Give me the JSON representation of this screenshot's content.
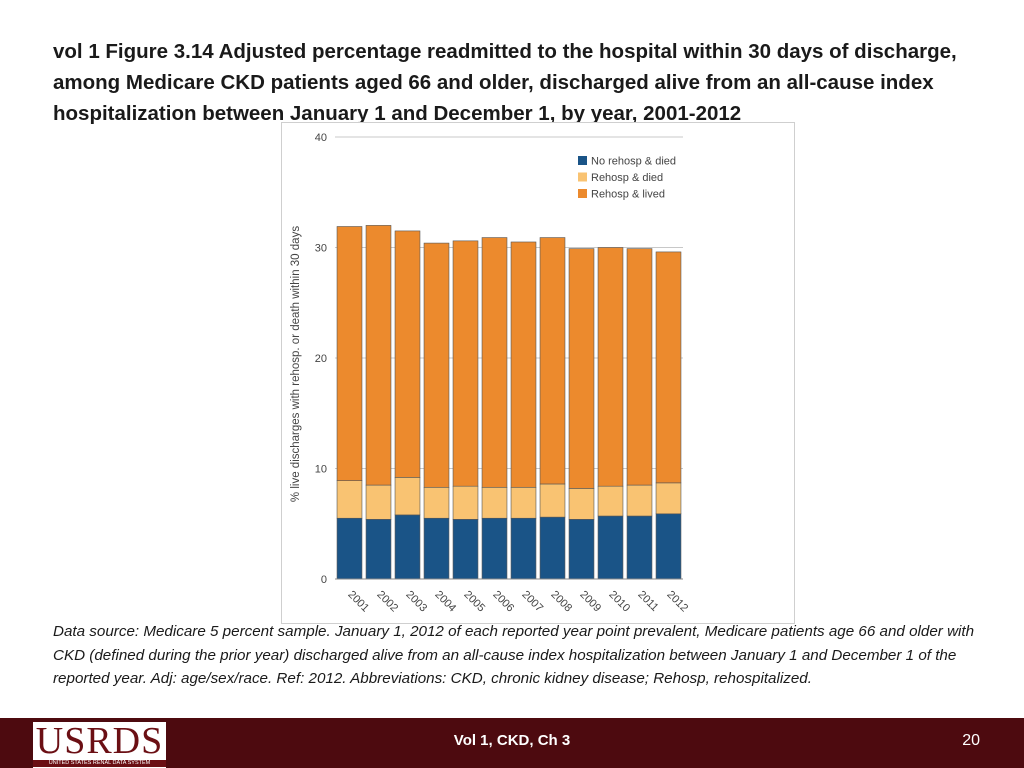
{
  "slide": {
    "title": "vol 1 Figure 3.14  Adjusted percentage readmitted to the hospital within 30 days of discharge, among Medicare CKD patients aged 66 and older, discharged alive from an all-cause index hospitalization between January 1 and December 1, by year, 2001-2012",
    "source": "Data source: Medicare 5 percent sample. January 1, 2012 of each reported year point prevalent, Medicare patients age 66 and older with CKD (defined during the prior year) discharged alive from an all-cause index hospitalization between January 1 and December 1 of the reported year. Adj: age/sex/race. Ref: 2012. Abbreviations: CKD, chronic kidney disease; Rehosp, rehospitalized."
  },
  "footer": {
    "logo_text": "USRDS",
    "logo_subtitle": "UNITED STATES RENAL DATA SYSTEM",
    "center_label": "Vol 1, CKD, Ch 3",
    "page_number": "20"
  },
  "colors": {
    "no_rehosp_died": "#1a5487",
    "rehosp_died": "#f9c372",
    "rehosp_lived": "#ec8a2d",
    "footer_bg": "#4d0a0f"
  },
  "chart_data": {
    "type": "bar",
    "stacked": true,
    "title": "",
    "xlabel": "",
    "ylabel": "% live discharges with rehosp. or death within 30 days",
    "ylim": [
      0,
      40
    ],
    "yticks": [
      0,
      10,
      20,
      30,
      40
    ],
    "legend_position": "top-right",
    "categories": [
      "2001",
      "2002",
      "2003",
      "2004",
      "2005",
      "2006",
      "2007",
      "2008",
      "2009",
      "2010",
      "2011",
      "2012"
    ],
    "series": [
      {
        "name": "No rehosp & died",
        "color": "#1a5487",
        "values": [
          5.5,
          5.4,
          5.8,
          5.5,
          5.4,
          5.5,
          5.5,
          5.6,
          5.4,
          5.7,
          5.7,
          5.9
        ]
      },
      {
        "name": "Rehosp & died",
        "color": "#f9c372",
        "values": [
          3.4,
          3.1,
          3.4,
          2.8,
          3.0,
          2.8,
          2.8,
          3.0,
          2.8,
          2.7,
          2.8,
          2.8
        ]
      },
      {
        "name": "Rehosp & lived",
        "color": "#ec8a2d",
        "values": [
          23.0,
          23.5,
          22.3,
          22.1,
          22.2,
          22.6,
          22.2,
          22.3,
          21.7,
          21.6,
          21.4,
          20.9
        ]
      }
    ]
  }
}
